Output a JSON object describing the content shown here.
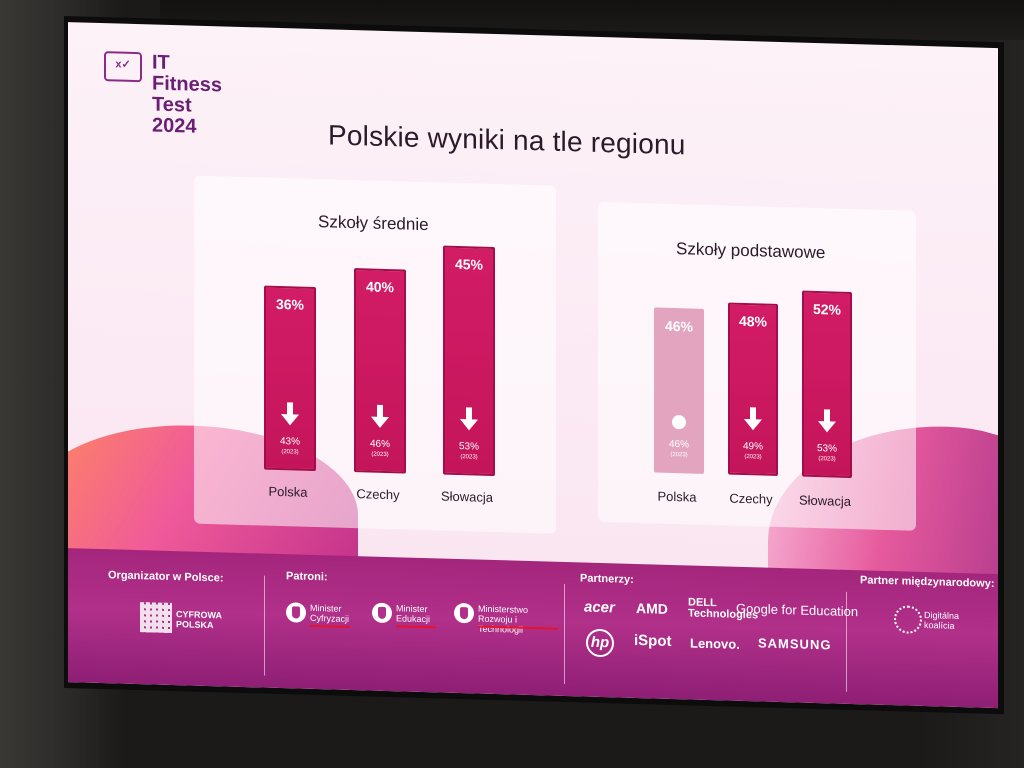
{
  "logo": {
    "icon_text": "x✓",
    "text": "IT\nFitness\nTest\n2024"
  },
  "title": "Polskie wyniki na tle regionu",
  "chart_data": [
    {
      "type": "bar",
      "title": "Szkoły średnie",
      "categories": [
        "Polska",
        "Czechy",
        "Słowacja"
      ],
      "series": [
        {
          "name": "",
          "values": [
            36,
            40,
            45
          ]
        }
      ],
      "value_labels": [
        "36%",
        "40%",
        "45%"
      ],
      "previous_values": [
        43,
        46,
        53
      ],
      "previous_labels": [
        "43%",
        "46%",
        "53%"
      ],
      "previous_year": "(2023)",
      "trend": [
        "down",
        "down",
        "down"
      ],
      "ylim": [
        0,
        60
      ]
    },
    {
      "type": "bar",
      "title": "Szkoły podstawowe",
      "categories": [
        "Polska",
        "Czechy",
        "Słowacja"
      ],
      "series": [
        {
          "name": "",
          "values": [
            46,
            48,
            52
          ]
        }
      ],
      "value_labels": [
        "46%",
        "48%",
        "52%"
      ],
      "previous_values": [
        46,
        49,
        53
      ],
      "previous_labels": [
        "46%",
        "49%",
        "53%"
      ],
      "previous_year": "(2023)",
      "trend": [
        "same",
        "down",
        "down"
      ],
      "ylim": [
        0,
        60
      ]
    }
  ],
  "footer": {
    "organizer_label": "Organizator w Polsce:",
    "organizer_name": "CYFROWA POLSKA",
    "patrons_label": "Patroni:",
    "patrons": [
      "Minister Cyfryzacji",
      "Minister Edukacji",
      "Ministerstwo Rozwoju i Technologii"
    ],
    "partners_label": "Partnerzy:",
    "partners": [
      "acer",
      "AMD",
      "DELL Technologies",
      "Google for Education",
      "hp",
      "iSpot",
      "Lenovo.",
      "SAMSUNG"
    ],
    "intl_label": "Partner międzynarodowy:",
    "intl_partner": "Digitálna koalícia"
  },
  "colors": {
    "bar": "#c4155a",
    "bar_faded": "#e3a4c0",
    "footer": "#a4267c",
    "logo": "#6b1f74"
  }
}
